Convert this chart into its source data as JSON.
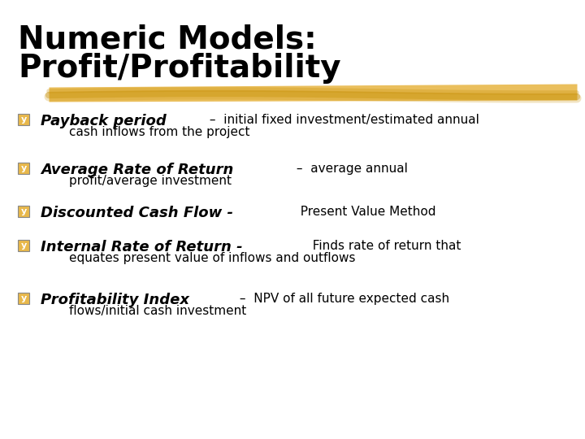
{
  "title_line1": "Numeric Models:",
  "title_line2": "Profit/Profitability",
  "background_color": "#ffffff",
  "title_color": "#000000",
  "title_fontsize": 28,
  "highlight_color": "#E8B84B",
  "bullet_color": "#E8B84B",
  "bold_italic_fontsize": 13,
  "regular_fontsize": 11,
  "items": [
    {
      "bold_italic": "Payback period",
      "regular1": " –  initial fixed investment/estimated annual",
      "regular2": "cash inflows from the project",
      "lines": 2
    },
    {
      "bold_italic": "Average Rate of Return",
      "regular1": " –  average annual",
      "regular2": "profit/average investment",
      "lines": 2
    },
    {
      "bold_italic": "Discounted Cash Flow -",
      "regular1": "  Present Value Method",
      "regular2": "",
      "lines": 1
    },
    {
      "bold_italic": "Internal Rate of Return -",
      "regular1": "  Finds rate of return that",
      "regular2": "equates present value of inflows and outflows",
      "lines": 2
    },
    {
      "bold_italic": "Profitability Index",
      "regular1": " –  NPV of all future expected cash",
      "regular2": "flows/initial cash investment",
      "lines": 2
    }
  ]
}
